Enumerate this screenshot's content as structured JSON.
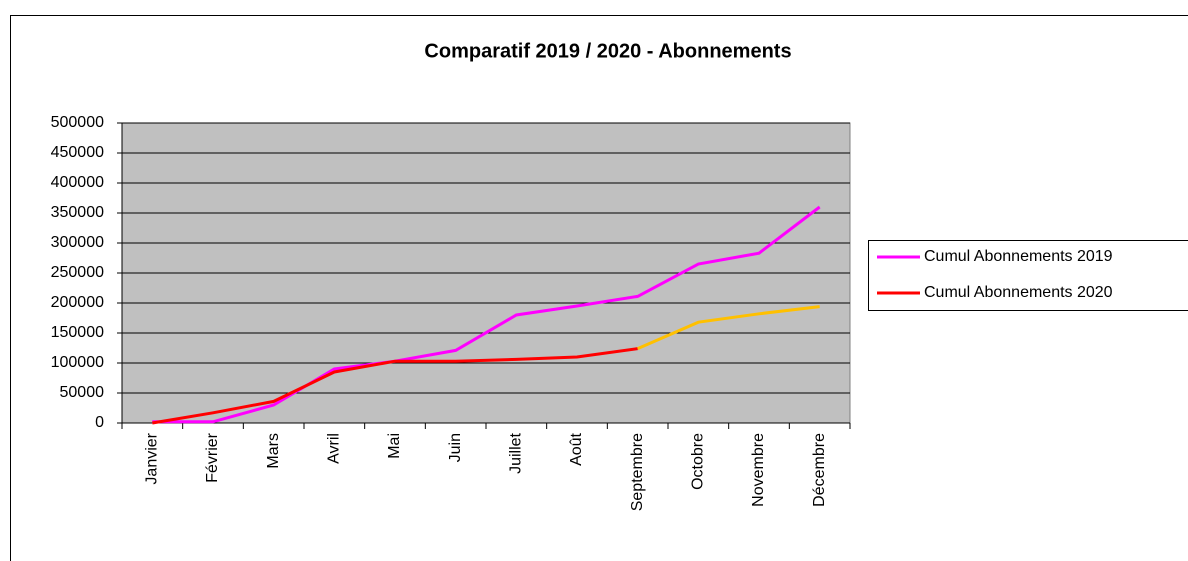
{
  "chart_data": {
    "type": "line",
    "title": "Comparatif 2019 / 2020 - Abonnements",
    "categories": [
      "Janvier",
      "Février",
      "Mars",
      "Avril",
      "Mai",
      "Juin",
      "Juillet",
      "Août",
      "Septembre",
      "Octobre",
      "Novembre",
      "Décembre"
    ],
    "series": [
      {
        "name": "Cumul Abonnements 2019",
        "color": "#ff00ff",
        "values": [
          2000,
          2000,
          30000,
          90000,
          103000,
          121000,
          180000,
          195000,
          211000,
          265000,
          283000,
          360000
        ]
      },
      {
        "name": "Cumul Abonnements 2020",
        "color": "#ff0000",
        "segment_colors": [
          "#ff0000",
          "#ff0000",
          "#ff0000",
          "#ff0000",
          "#ff0000",
          "#ff0000",
          "#ff0000",
          "#ff0000",
          "#ffc000",
          "#ffc000",
          "#ffc000"
        ],
        "values": [
          0,
          17000,
          36000,
          85000,
          103000,
          103000,
          106000,
          110000,
          124000,
          168000,
          182000,
          194000
        ]
      }
    ],
    "ylim": [
      0,
      500000
    ],
    "yticks": [
      0,
      50000,
      100000,
      150000,
      200000,
      250000,
      300000,
      350000,
      400000,
      450000,
      500000
    ],
    "grid": true,
    "plot_background": "#c0c0c0",
    "legend": "right"
  }
}
